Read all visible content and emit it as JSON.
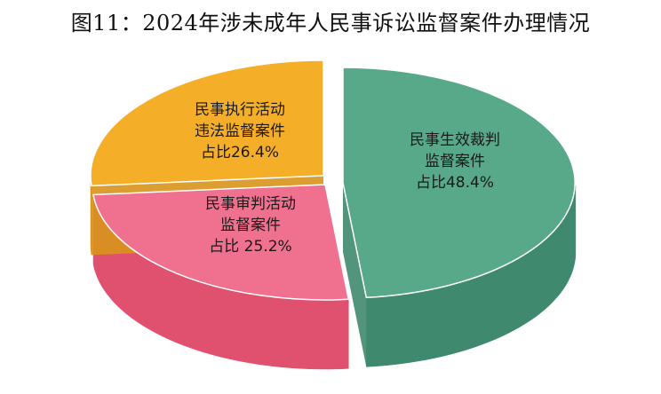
{
  "chart_data": {
    "type": "pie",
    "title": "图11：2024年涉未成年人民事诉讼监督案件办理情况",
    "slices": [
      {
        "label_lines": [
          "民事生效裁判",
          "监督案件",
          "占比48.4%"
        ],
        "value": 48.4,
        "color": "#58a88a",
        "side_color": "#3f8a6e"
      },
      {
        "label_lines": [
          "民事审判活动",
          "监督案件",
          "占比 25.2%"
        ],
        "value": 25.2,
        "color": "#f0708f",
        "side_color": "#e0506f"
      },
      {
        "label_lines": [
          "民事执行活动",
          "违法监督案件",
          "占比26.4%"
        ],
        "value": 26.4,
        "color": "#f5ae28",
        "side_color": "#d8931a"
      }
    ]
  }
}
